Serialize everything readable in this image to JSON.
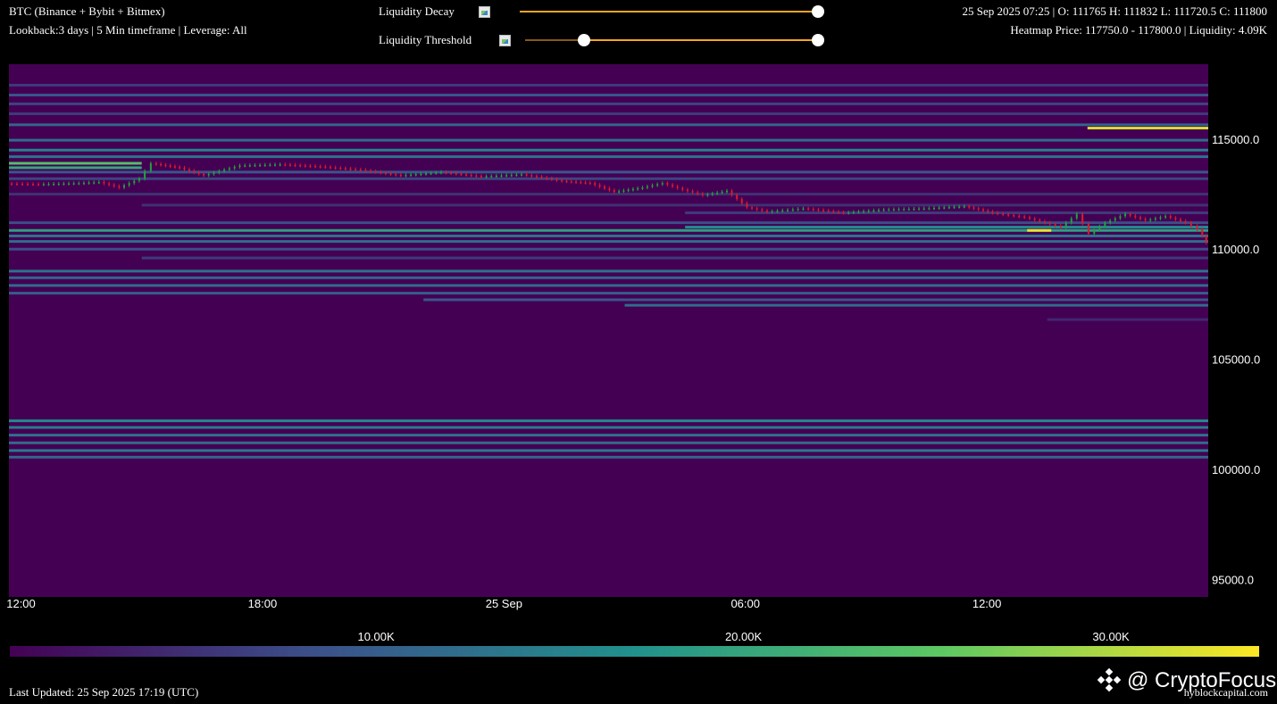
{
  "header": {
    "title": "BTC (Binance + Bybit + Bitmex)",
    "subtitle": "Lookback:3 days | 5 Min timeframe | Leverage: All",
    "ohlc": "25 Sep 2025 07:25 | O: 111765 H: 111832 L: 111720.5 C: 111800",
    "heatmap_info": "Heatmap Price: 117750.0 - 117800.0 | Liquidity: 4.09K"
  },
  "controls": {
    "decay_label": "Liquidity Decay",
    "decay_value": 1.0,
    "threshold_label": "Liquidity Threshold",
    "threshold_low": 0.2,
    "threshold_high": 1.0,
    "slider_color": "#f5a623"
  },
  "footer": {
    "last_updated": "Last Updated: 25 Sep 2025 17:19 (UTC)",
    "watermark": "@ CryptoFocus",
    "source": "hyblockcapital.com"
  },
  "colorbar": {
    "ticks": [
      "10.00K",
      "20.00K",
      "30.00K"
    ],
    "tick_values": [
      10000,
      20000,
      30000
    ],
    "range": [
      0,
      34000
    ],
    "colors": [
      "#440154",
      "#3b528b",
      "#21918c",
      "#5ec962",
      "#fde725"
    ]
  },
  "chart_data": {
    "type": "heatmap",
    "x_ticks": [
      "12:00",
      "18:00",
      "25 Sep",
      "06:00",
      "12:00"
    ],
    "x_tick_hours": [
      12,
      18,
      24,
      30,
      36
    ],
    "x_range_hours": [
      11.7,
      41.5
    ],
    "y_ticks": [
      "115000.0",
      "110000.0",
      "105000.0",
      "100000.0",
      "95000.0"
    ],
    "y_tick_values": [
      115000,
      110000,
      105000,
      100000,
      95000
    ],
    "ylim": [
      94200,
      118400
    ],
    "background_color": "#440154",
    "bands": [
      {
        "price": 117450,
        "start": 11.7,
        "end": 41.5,
        "liquidity": 6000
      },
      {
        "price": 117000,
        "start": 11.7,
        "end": 41.5,
        "liquidity": 9000
      },
      {
        "price": 116600,
        "start": 11.7,
        "end": 41.5,
        "liquidity": 7000
      },
      {
        "price": 116150,
        "start": 11.7,
        "end": 41.5,
        "liquidity": 6000
      },
      {
        "price": 115650,
        "start": 11.7,
        "end": 41.5,
        "liquidity": 11000
      },
      {
        "price": 115500,
        "start": 38.5,
        "end": 41.5,
        "liquidity": 32000
      },
      {
        "price": 114950,
        "start": 11.7,
        "end": 41.5,
        "liquidity": 12000
      },
      {
        "price": 114500,
        "start": 11.7,
        "end": 41.5,
        "liquidity": 15000
      },
      {
        "price": 114200,
        "start": 11.7,
        "end": 41.5,
        "liquidity": 13000
      },
      {
        "price": 113900,
        "start": 11.7,
        "end": 15.0,
        "liquidity": 24000
      },
      {
        "price": 113700,
        "start": 11.7,
        "end": 15.0,
        "liquidity": 20000
      },
      {
        "price": 113500,
        "start": 11.7,
        "end": 41.5,
        "liquidity": 9000
      },
      {
        "price": 113200,
        "start": 11.7,
        "end": 41.5,
        "liquidity": 7000
      },
      {
        "price": 112500,
        "start": 11.7,
        "end": 41.5,
        "liquidity": 5000
      },
      {
        "price": 112000,
        "start": 15.0,
        "end": 41.5,
        "liquidity": 5000
      },
      {
        "price": 111650,
        "start": 28.5,
        "end": 41.5,
        "liquidity": 6000
      },
      {
        "price": 111200,
        "start": 11.7,
        "end": 41.5,
        "liquidity": 8000
      },
      {
        "price": 111000,
        "start": 28.5,
        "end": 41.5,
        "liquidity": 16000
      },
      {
        "price": 110850,
        "start": 11.7,
        "end": 41.5,
        "liquidity": 19000
      },
      {
        "price": 110850,
        "start": 37.0,
        "end": 37.6,
        "liquidity": 33000
      },
      {
        "price": 110600,
        "start": 11.7,
        "end": 41.5,
        "liquidity": 13000
      },
      {
        "price": 110350,
        "start": 11.7,
        "end": 41.5,
        "liquidity": 12000
      },
      {
        "price": 110000,
        "start": 11.7,
        "end": 41.5,
        "liquidity": 8000
      },
      {
        "price": 109600,
        "start": 15.0,
        "end": 41.5,
        "liquidity": 6000
      },
      {
        "price": 109000,
        "start": 11.7,
        "end": 41.5,
        "liquidity": 13000
      },
      {
        "price": 108700,
        "start": 11.7,
        "end": 41.5,
        "liquidity": 11000
      },
      {
        "price": 108350,
        "start": 11.7,
        "end": 41.5,
        "liquidity": 12000
      },
      {
        "price": 108000,
        "start": 11.7,
        "end": 41.5,
        "liquidity": 10000
      },
      {
        "price": 107700,
        "start": 22.0,
        "end": 41.5,
        "liquidity": 9000
      },
      {
        "price": 107450,
        "start": 27.0,
        "end": 41.5,
        "liquidity": 12000
      },
      {
        "price": 106800,
        "start": 37.5,
        "end": 41.5,
        "liquidity": 4000
      },
      {
        "price": 102200,
        "start": 11.7,
        "end": 41.5,
        "liquidity": 16000
      },
      {
        "price": 101900,
        "start": 11.7,
        "end": 41.5,
        "liquidity": 14000
      },
      {
        "price": 101550,
        "start": 11.7,
        "end": 41.5,
        "liquidity": 13000
      },
      {
        "price": 101200,
        "start": 11.7,
        "end": 41.5,
        "liquidity": 12000
      },
      {
        "price": 100850,
        "start": 11.7,
        "end": 41.5,
        "liquidity": 14000
      },
      {
        "price": 100550,
        "start": 11.7,
        "end": 41.5,
        "liquidity": 11000
      }
    ],
    "price_path": [
      {
        "h": 11.7,
        "p": 112980
      },
      {
        "h": 12.5,
        "p": 112950
      },
      {
        "h": 13.5,
        "p": 113000
      },
      {
        "h": 14.0,
        "p": 113050
      },
      {
        "h": 14.5,
        "p": 112800
      },
      {
        "h": 15.0,
        "p": 113200
      },
      {
        "h": 15.3,
        "p": 113900
      },
      {
        "h": 16.0,
        "p": 113700
      },
      {
        "h": 16.6,
        "p": 113350
      },
      {
        "h": 17.5,
        "p": 113800
      },
      {
        "h": 18.5,
        "p": 113850
      },
      {
        "h": 19.5,
        "p": 113750
      },
      {
        "h": 20.5,
        "p": 113600
      },
      {
        "h": 21.5,
        "p": 113350
      },
      {
        "h": 22.5,
        "p": 113500
      },
      {
        "h": 23.5,
        "p": 113300
      },
      {
        "h": 24.5,
        "p": 113400
      },
      {
        "h": 25.5,
        "p": 113100
      },
      {
        "h": 26.2,
        "p": 113000
      },
      {
        "h": 26.8,
        "p": 112600
      },
      {
        "h": 27.5,
        "p": 112800
      },
      {
        "h": 28.0,
        "p": 113000
      },
      {
        "h": 28.5,
        "p": 112700
      },
      {
        "h": 29.0,
        "p": 112450
      },
      {
        "h": 29.6,
        "p": 112650
      },
      {
        "h": 30.1,
        "p": 111900
      },
      {
        "h": 30.6,
        "p": 111700
      },
      {
        "h": 31.5,
        "p": 111850
      },
      {
        "h": 32.5,
        "p": 111650
      },
      {
        "h": 33.5,
        "p": 111800
      },
      {
        "h": 34.5,
        "p": 111850
      },
      {
        "h": 35.5,
        "p": 111950
      },
      {
        "h": 36.2,
        "p": 111650
      },
      {
        "h": 37.0,
        "p": 111450
      },
      {
        "h": 37.5,
        "p": 111200
      },
      {
        "h": 37.9,
        "p": 111000
      },
      {
        "h": 38.3,
        "p": 111600
      },
      {
        "h": 38.6,
        "p": 110700
      },
      {
        "h": 39.0,
        "p": 111200
      },
      {
        "h": 39.5,
        "p": 111600
      },
      {
        "h": 40.0,
        "p": 111300
      },
      {
        "h": 40.5,
        "p": 111500
      },
      {
        "h": 41.0,
        "p": 111200
      },
      {
        "h": 41.3,
        "p": 110900
      },
      {
        "h": 41.5,
        "p": 110300
      }
    ]
  }
}
